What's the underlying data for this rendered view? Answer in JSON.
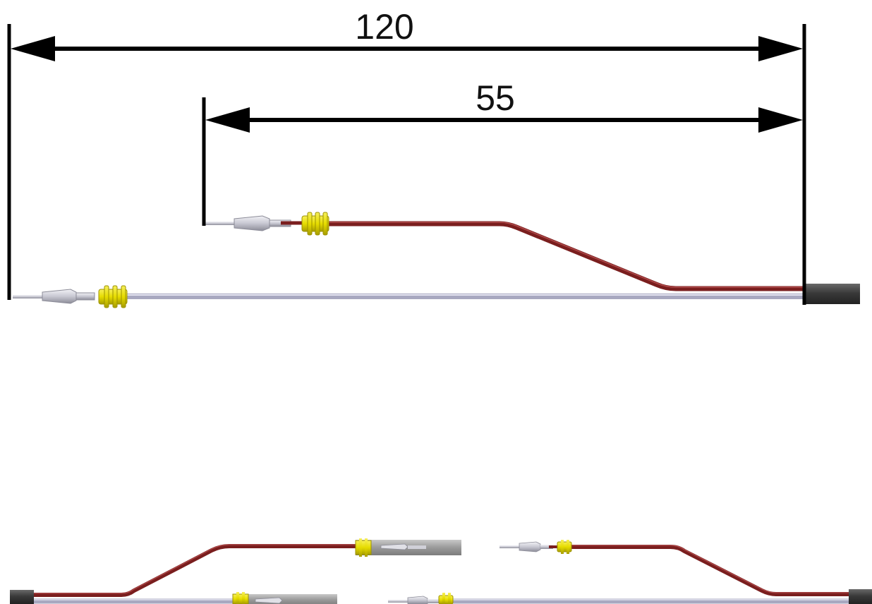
{
  "dimensions": {
    "overall": {
      "value": "120"
    },
    "branch": {
      "value": "55"
    }
  },
  "colors": {
    "dimension_line": "#000000",
    "wire_red": "#7a1e1e",
    "wire_red_highlight": "#b04a4a",
    "wire_grey": "#a8a8c0",
    "wire_grey_highlight": "#e4e4f0",
    "seal_yellow": "#e6dc00",
    "seal_yellow_dark": "#9c9200",
    "terminal": "#d4d4dc",
    "terminal_dark": "#8c8c98",
    "sleeve": "#3c3c3c",
    "splice_housing": "#a0a0a0"
  },
  "icons": [
    "terminal-pin-icon",
    "wire-seal-icon",
    "heat-shrink-sleeve-icon",
    "splice-housing-icon"
  ]
}
